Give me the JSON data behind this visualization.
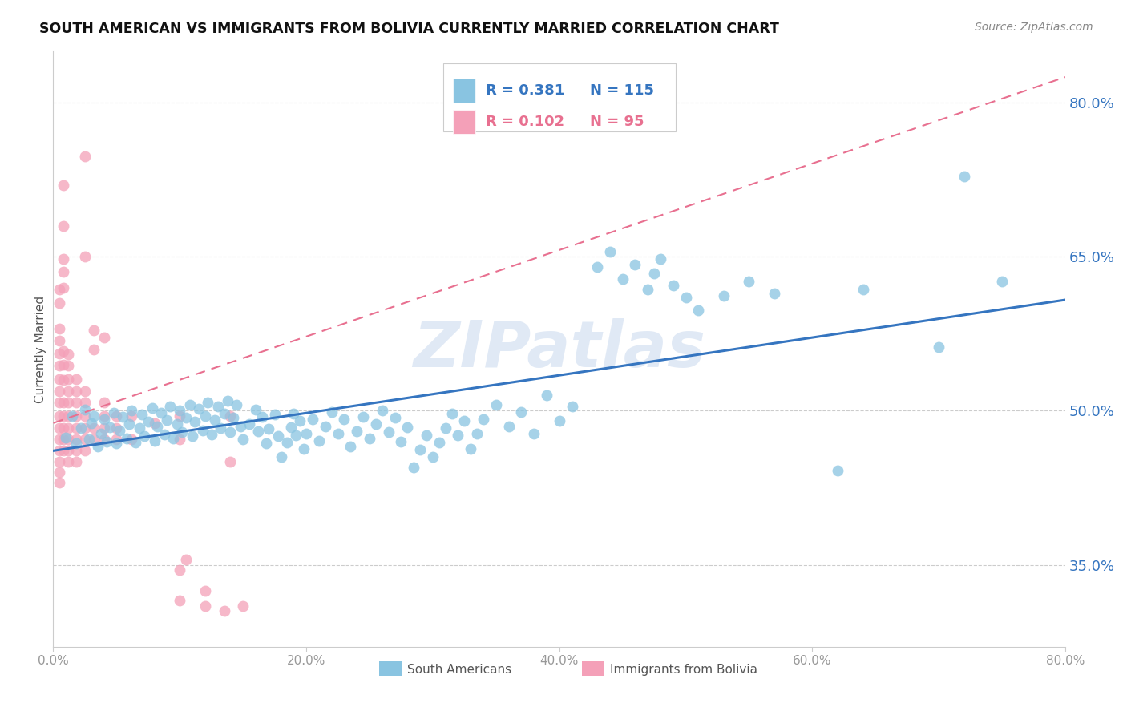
{
  "title": "SOUTH AMERICAN VS IMMIGRANTS FROM BOLIVIA CURRENTLY MARRIED CORRELATION CHART",
  "source": "Source: ZipAtlas.com",
  "ylabel": "Currently Married",
  "watermark": "ZIPatlas",
  "yticks": [
    35.0,
    50.0,
    65.0,
    80.0
  ],
  "xlim": [
    0.0,
    0.8
  ],
  "ylim": [
    0.27,
    0.85
  ],
  "blue_color": "#89c4e1",
  "pink_color": "#f4a0b8",
  "blue_line_color": "#3575c0",
  "pink_line_color": "#e87090",
  "blue_line": [
    0.0,
    0.461,
    0.8,
    0.608
  ],
  "pink_line": [
    0.0,
    0.488,
    0.8,
    0.825
  ],
  "blue_scatter": [
    [
      0.01,
      0.474
    ],
    [
      0.015,
      0.495
    ],
    [
      0.018,
      0.468
    ],
    [
      0.022,
      0.483
    ],
    [
      0.025,
      0.501
    ],
    [
      0.028,
      0.472
    ],
    [
      0.03,
      0.488
    ],
    [
      0.032,
      0.495
    ],
    [
      0.035,
      0.465
    ],
    [
      0.038,
      0.478
    ],
    [
      0.04,
      0.492
    ],
    [
      0.042,
      0.47
    ],
    [
      0.045,
      0.484
    ],
    [
      0.048,
      0.498
    ],
    [
      0.05,
      0.468
    ],
    [
      0.052,
      0.481
    ],
    [
      0.055,
      0.494
    ],
    [
      0.058,
      0.473
    ],
    [
      0.06,
      0.487
    ],
    [
      0.062,
      0.5
    ],
    [
      0.065,
      0.469
    ],
    [
      0.068,
      0.483
    ],
    [
      0.07,
      0.496
    ],
    [
      0.072,
      0.475
    ],
    [
      0.075,
      0.489
    ],
    [
      0.078,
      0.503
    ],
    [
      0.08,
      0.471
    ],
    [
      0.082,
      0.485
    ],
    [
      0.085,
      0.498
    ],
    [
      0.088,
      0.477
    ],
    [
      0.09,
      0.491
    ],
    [
      0.092,
      0.504
    ],
    [
      0.095,
      0.473
    ],
    [
      0.098,
      0.487
    ],
    [
      0.1,
      0.5
    ],
    [
      0.102,
      0.479
    ],
    [
      0.105,
      0.493
    ],
    [
      0.108,
      0.506
    ],
    [
      0.11,
      0.475
    ],
    [
      0.112,
      0.489
    ],
    [
      0.115,
      0.502
    ],
    [
      0.118,
      0.481
    ],
    [
      0.12,
      0.495
    ],
    [
      0.122,
      0.508
    ],
    [
      0.125,
      0.477
    ],
    [
      0.128,
      0.491
    ],
    [
      0.13,
      0.504
    ],
    [
      0.132,
      0.483
    ],
    [
      0.135,
      0.497
    ],
    [
      0.138,
      0.51
    ],
    [
      0.14,
      0.479
    ],
    [
      0.142,
      0.493
    ],
    [
      0.145,
      0.506
    ],
    [
      0.148,
      0.485
    ],
    [
      0.15,
      0.472
    ],
    [
      0.155,
      0.487
    ],
    [
      0.16,
      0.501
    ],
    [
      0.162,
      0.48
    ],
    [
      0.165,
      0.494
    ],
    [
      0.168,
      0.468
    ],
    [
      0.17,
      0.482
    ],
    [
      0.175,
      0.496
    ],
    [
      0.178,
      0.475
    ],
    [
      0.18,
      0.455
    ],
    [
      0.185,
      0.469
    ],
    [
      0.188,
      0.484
    ],
    [
      0.19,
      0.497
    ],
    [
      0.192,
      0.476
    ],
    [
      0.195,
      0.49
    ],
    [
      0.198,
      0.463
    ],
    [
      0.2,
      0.478
    ],
    [
      0.205,
      0.492
    ],
    [
      0.21,
      0.471
    ],
    [
      0.215,
      0.485
    ],
    [
      0.22,
      0.499
    ],
    [
      0.225,
      0.478
    ],
    [
      0.23,
      0.492
    ],
    [
      0.235,
      0.465
    ],
    [
      0.24,
      0.48
    ],
    [
      0.245,
      0.494
    ],
    [
      0.25,
      0.473
    ],
    [
      0.255,
      0.487
    ],
    [
      0.26,
      0.5
    ],
    [
      0.265,
      0.479
    ],
    [
      0.27,
      0.493
    ],
    [
      0.275,
      0.47
    ],
    [
      0.28,
      0.484
    ],
    [
      0.285,
      0.445
    ],
    [
      0.29,
      0.462
    ],
    [
      0.295,
      0.476
    ],
    [
      0.3,
      0.455
    ],
    [
      0.305,
      0.469
    ],
    [
      0.31,
      0.483
    ],
    [
      0.315,
      0.497
    ],
    [
      0.32,
      0.476
    ],
    [
      0.325,
      0.49
    ],
    [
      0.33,
      0.463
    ],
    [
      0.335,
      0.478
    ],
    [
      0.34,
      0.492
    ],
    [
      0.35,
      0.506
    ],
    [
      0.36,
      0.485
    ],
    [
      0.37,
      0.499
    ],
    [
      0.38,
      0.478
    ],
    [
      0.39,
      0.515
    ],
    [
      0.4,
      0.49
    ],
    [
      0.41,
      0.504
    ],
    [
      0.43,
      0.64
    ],
    [
      0.44,
      0.655
    ],
    [
      0.45,
      0.628
    ],
    [
      0.46,
      0.642
    ],
    [
      0.47,
      0.618
    ],
    [
      0.475,
      0.634
    ],
    [
      0.48,
      0.648
    ],
    [
      0.49,
      0.622
    ],
    [
      0.5,
      0.61
    ],
    [
      0.51,
      0.598
    ],
    [
      0.53,
      0.612
    ],
    [
      0.55,
      0.626
    ],
    [
      0.57,
      0.614
    ],
    [
      0.62,
      0.442
    ],
    [
      0.64,
      0.618
    ],
    [
      0.7,
      0.562
    ],
    [
      0.72,
      0.728
    ],
    [
      0.75,
      0.626
    ]
  ],
  "pink_scatter": [
    [
      0.005,
      0.472
    ],
    [
      0.005,
      0.495
    ],
    [
      0.005,
      0.483
    ],
    [
      0.005,
      0.508
    ],
    [
      0.005,
      0.461
    ],
    [
      0.005,
      0.519
    ],
    [
      0.005,
      0.45
    ],
    [
      0.005,
      0.531
    ],
    [
      0.005,
      0.544
    ],
    [
      0.005,
      0.44
    ],
    [
      0.005,
      0.556
    ],
    [
      0.005,
      0.43
    ],
    [
      0.005,
      0.568
    ],
    [
      0.005,
      0.58
    ],
    [
      0.005,
      0.605
    ],
    [
      0.005,
      0.618
    ],
    [
      0.008,
      0.472
    ],
    [
      0.008,
      0.495
    ],
    [
      0.008,
      0.483
    ],
    [
      0.008,
      0.508
    ],
    [
      0.008,
      0.461
    ],
    [
      0.008,
      0.53
    ],
    [
      0.008,
      0.545
    ],
    [
      0.008,
      0.558
    ],
    [
      0.008,
      0.62
    ],
    [
      0.008,
      0.635
    ],
    [
      0.008,
      0.648
    ],
    [
      0.008,
      0.68
    ],
    [
      0.008,
      0.72
    ],
    [
      0.012,
      0.472
    ],
    [
      0.012,
      0.495
    ],
    [
      0.012,
      0.483
    ],
    [
      0.012,
      0.508
    ],
    [
      0.012,
      0.461
    ],
    [
      0.012,
      0.519
    ],
    [
      0.012,
      0.45
    ],
    [
      0.012,
      0.531
    ],
    [
      0.012,
      0.544
    ],
    [
      0.012,
      0.555
    ],
    [
      0.018,
      0.472
    ],
    [
      0.018,
      0.495
    ],
    [
      0.018,
      0.483
    ],
    [
      0.018,
      0.508
    ],
    [
      0.018,
      0.461
    ],
    [
      0.018,
      0.519
    ],
    [
      0.018,
      0.45
    ],
    [
      0.018,
      0.531
    ],
    [
      0.025,
      0.472
    ],
    [
      0.025,
      0.495
    ],
    [
      0.025,
      0.483
    ],
    [
      0.025,
      0.508
    ],
    [
      0.025,
      0.461
    ],
    [
      0.025,
      0.519
    ],
    [
      0.025,
      0.65
    ],
    [
      0.025,
      0.748
    ],
    [
      0.032,
      0.472
    ],
    [
      0.032,
      0.483
    ],
    [
      0.032,
      0.56
    ],
    [
      0.032,
      0.578
    ],
    [
      0.04,
      0.472
    ],
    [
      0.04,
      0.495
    ],
    [
      0.04,
      0.483
    ],
    [
      0.04,
      0.508
    ],
    [
      0.04,
      0.571
    ],
    [
      0.05,
      0.472
    ],
    [
      0.05,
      0.495
    ],
    [
      0.05,
      0.483
    ],
    [
      0.062,
      0.472
    ],
    [
      0.062,
      0.495
    ],
    [
      0.08,
      0.488
    ],
    [
      0.1,
      0.495
    ],
    [
      0.1,
      0.472
    ],
    [
      0.1,
      0.345
    ],
    [
      0.1,
      0.315
    ],
    [
      0.12,
      0.325
    ],
    [
      0.12,
      0.31
    ],
    [
      0.14,
      0.495
    ],
    [
      0.14,
      0.45
    ],
    [
      0.15,
      0.31
    ],
    [
      0.105,
      0.355
    ],
    [
      0.135,
      0.305
    ]
  ]
}
